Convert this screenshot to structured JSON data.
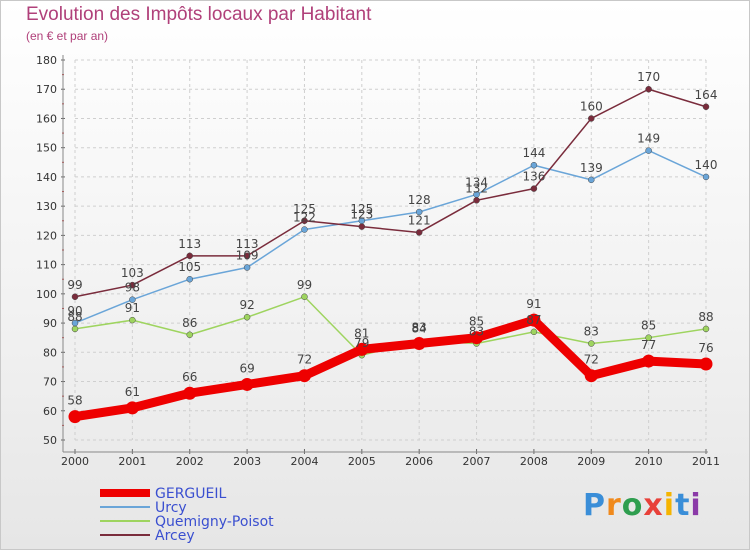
{
  "title": "Evolution des Impôts locaux par Habitant",
  "subtitle": "(en € et par an)",
  "brand": {
    "letters": [
      "P",
      "r",
      "o",
      "x",
      "i",
      "t",
      "i"
    ],
    "colors": [
      "#3a8ed8",
      "#f08a1d",
      "#2f9e4f",
      "#e8413a",
      "#f5b400",
      "#3a8ed8",
      "#8b3aa8"
    ]
  },
  "chart_data": {
    "type": "line",
    "title": "Evolution des Impôts locaux par Habitant",
    "subtitle": "(en € et par an)",
    "xlabel": "",
    "ylabel": "",
    "categories": [
      "2000",
      "2001",
      "2002",
      "2003",
      "2004",
      "2005",
      "2006",
      "2007",
      "2008",
      "2009",
      "2010",
      "2011"
    ],
    "ylim": [
      50,
      180
    ],
    "yticks": [
      50,
      60,
      70,
      80,
      90,
      100,
      110,
      120,
      130,
      140,
      150,
      160,
      170,
      180
    ],
    "grid": true,
    "legend_position": "bottom-left",
    "series": [
      {
        "name": "Quemigny-Poisot",
        "color": "#9ed45f",
        "values": [
          88,
          91,
          86,
          92,
          99,
          79,
          84,
          83,
          87,
          83,
          85,
          88
        ],
        "labels": [
          "88",
          "91",
          "86",
          "92",
          "99",
          "79",
          "84",
          "83",
          "87",
          "83",
          "85",
          "88"
        ]
      },
      {
        "name": "Urcy",
        "color": "#6aa5d8",
        "values": [
          90,
          98,
          105,
          109,
          122,
          125,
          128,
          134,
          144,
          139,
          149,
          140
        ],
        "labels": [
          "90",
          "98",
          "105",
          "109",
          "122",
          "125",
          "128",
          "134",
          "144",
          "139",
          "149",
          "140"
        ]
      },
      {
        "name": "Arcey",
        "color": "#7a2c3c",
        "values": [
          99,
          103,
          113,
          113,
          125,
          123,
          121,
          132,
          136,
          160,
          170,
          164
        ],
        "labels": [
          "99",
          "103",
          "113",
          "113",
          "125",
          "123",
          "121",
          "132",
          "136",
          "160",
          "170",
          "164"
        ]
      },
      {
        "name": "GERGUEIL",
        "color": "#ee0000",
        "values": [
          58,
          61,
          66,
          69,
          72,
          81,
          83,
          85,
          91,
          72,
          77,
          76
        ],
        "labels": [
          "58",
          "61",
          "66",
          "69",
          "72",
          "81",
          "83",
          "85",
          "91",
          "72",
          "77",
          "76"
        ]
      }
    ],
    "legend": [
      "GERGUEIL",
      "Urcy",
      "Quemigny-Poisot",
      "Arcey"
    ]
  }
}
